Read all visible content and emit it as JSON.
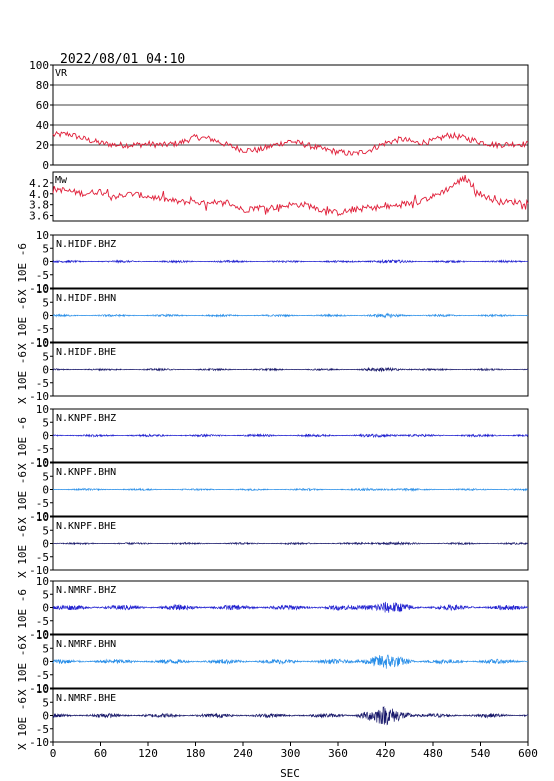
{
  "header": {
    "timestamp": "2022/08/01 04:10"
  },
  "chart_data": {
    "type": "line",
    "xlabel": "SEC",
    "xlim": [
      0,
      600
    ],
    "xticks": [
      "0",
      "60",
      "120",
      "180",
      "240",
      "300",
      "360",
      "420",
      "480",
      "540",
      "600"
    ],
    "panels": [
      {
        "label": "VR",
        "ylim": [
          0,
          100
        ],
        "yticks": [
          "0",
          "20",
          "40",
          "60",
          "80",
          "100"
        ],
        "grid": true,
        "color": "#e0203a",
        "series_x": [
          0,
          20,
          40,
          60,
          80,
          100,
          120,
          140,
          160,
          180,
          200,
          220,
          240,
          260,
          280,
          300,
          320,
          340,
          360,
          380,
          400,
          420,
          440,
          460,
          480,
          500,
          520,
          540,
          560,
          580,
          600
        ],
        "series_y": [
          30,
          31,
          26,
          22,
          20,
          20,
          21,
          20,
          22,
          28,
          26,
          20,
          15,
          15,
          20,
          24,
          20,
          16,
          13,
          11,
          15,
          22,
          26,
          22,
          24,
          30,
          27,
          23,
          20,
          21,
          21
        ]
      },
      {
        "label": "Mw",
        "ylim": [
          3.5,
          4.4
        ],
        "yticks": [
          "3.6",
          "3.8",
          "4.0",
          "4.2"
        ],
        "color": "#e0203a",
        "series_x": [
          0,
          20,
          40,
          60,
          80,
          100,
          120,
          140,
          160,
          180,
          200,
          220,
          240,
          260,
          280,
          300,
          320,
          340,
          360,
          380,
          400,
          420,
          440,
          460,
          480,
          500,
          520,
          540,
          560,
          580,
          600
        ],
        "series_y": [
          4.1,
          4.05,
          4.0,
          4.05,
          3.95,
          4.0,
          3.95,
          3.9,
          3.85,
          3.85,
          3.8,
          3.85,
          3.7,
          3.75,
          3.75,
          3.8,
          3.8,
          3.7,
          3.65,
          3.7,
          3.75,
          3.75,
          3.8,
          3.85,
          3.95,
          4.1,
          4.3,
          4.0,
          3.85,
          3.85,
          3.85
        ]
      }
    ],
    "waveforms": {
      "ylim": [
        -10,
        10
      ],
      "yticks": [
        "-10",
        "-5",
        "0",
        "5",
        "10"
      ],
      "ylabel": "X 10E -6",
      "stations": [
        {
          "label": "N.HIDF.BHZ",
          "color": "#2020d0",
          "amp": 0.4,
          "burst": 0.3
        },
        {
          "label": "N.HIDF.BHN",
          "color": "#2a8fe8",
          "amp": 0.4,
          "burst": 0.3
        },
        {
          "label": "N.HIDF.BHE",
          "color": "#18186a",
          "amp": 0.35,
          "burst": 0.4
        },
        {
          "label": "N.KNPF.BHZ",
          "color": "#2020d0",
          "amp": 0.45,
          "burst": 0.3
        },
        {
          "label": "N.KNPF.BHN",
          "color": "#2a8fe8",
          "amp": 0.35,
          "burst": 0.3
        },
        {
          "label": "N.KNPF.BHE",
          "color": "#18186a",
          "amp": 0.35,
          "burst": 0.3
        },
        {
          "label": "N.NMRF.BHZ",
          "color": "#2020d0",
          "amp": 1.0,
          "burst": 1.5
        },
        {
          "label": "N.NMRF.BHN",
          "color": "#2a8fe8",
          "amp": 0.9,
          "burst": 2.2
        },
        {
          "label": "N.NMRF.BHE",
          "color": "#18186a",
          "amp": 0.8,
          "burst": 3.0
        }
      ]
    }
  }
}
